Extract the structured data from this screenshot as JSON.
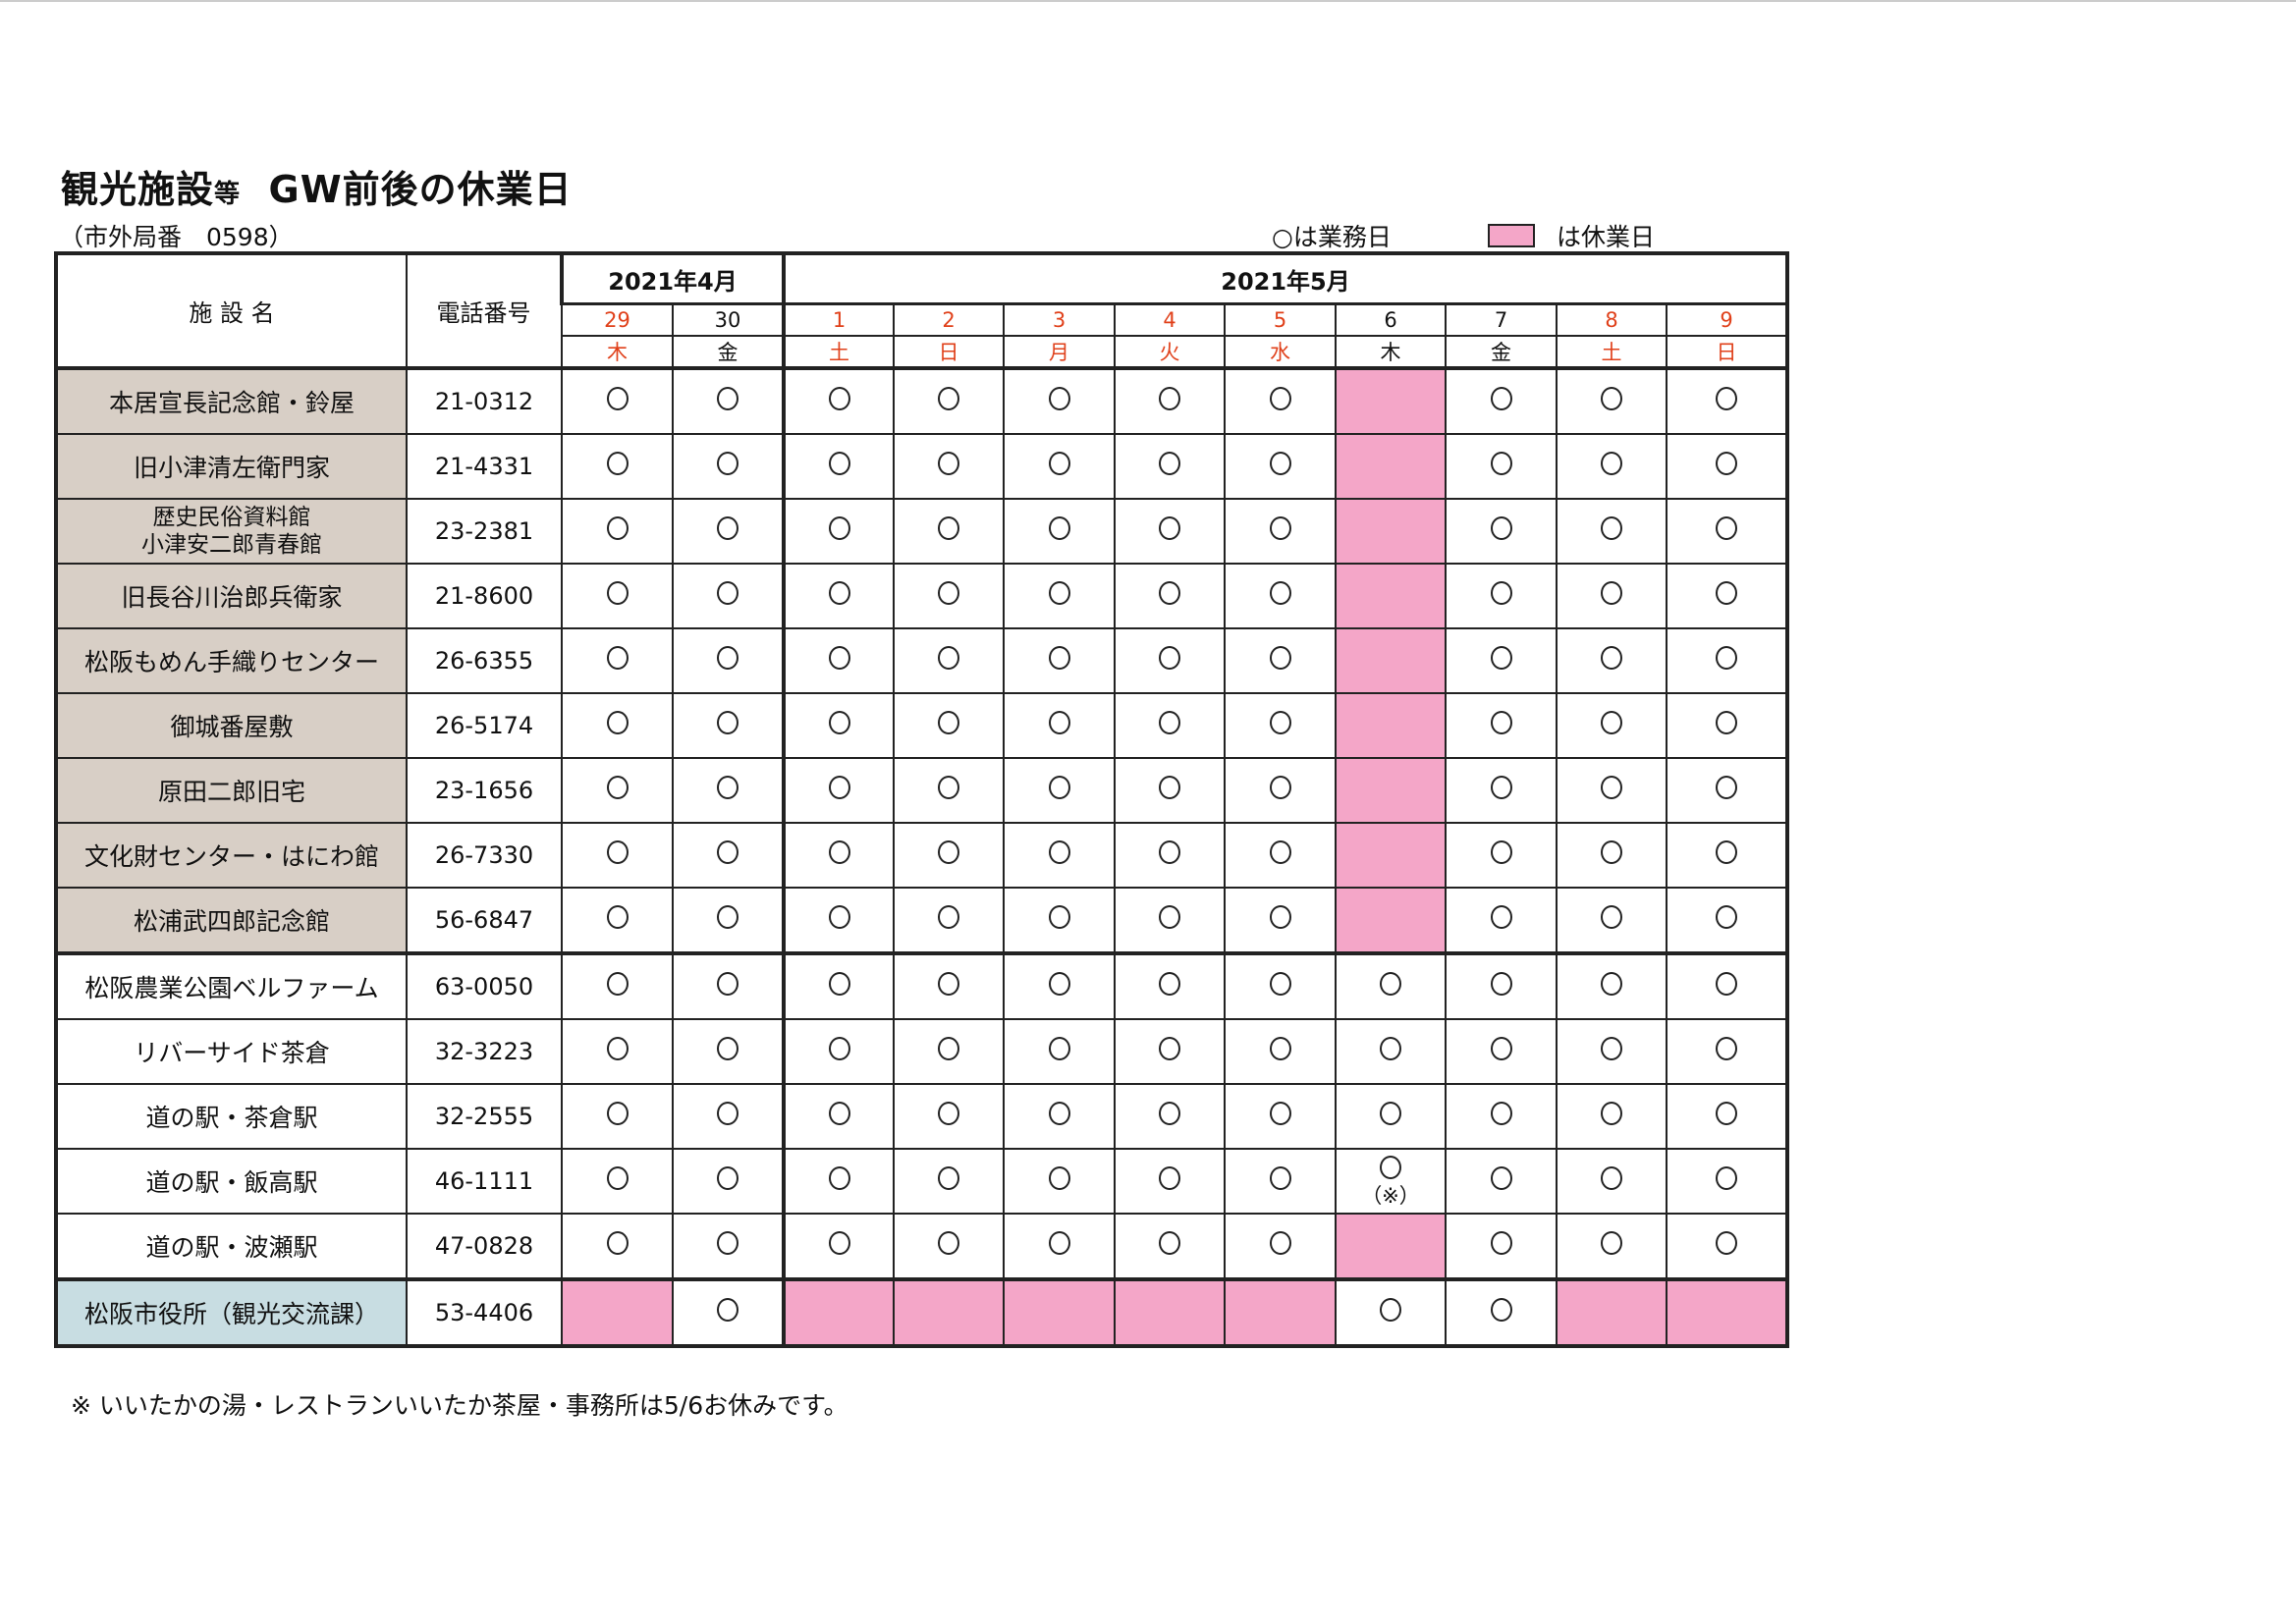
{
  "title": {
    "main": "観光施設",
    "small": "等",
    "rest": "GW前後の休業日"
  },
  "subtitle": "（市外局番　0598）",
  "legend": {
    "open": "○は業務日",
    "closed": "は休業日",
    "open_color": "#ffffff",
    "closed_color": "#f4a6c8"
  },
  "header": {
    "facility": "施 設 名",
    "phone": "電話番号",
    "months": [
      {
        "label": "2021年4月",
        "span": 2
      },
      {
        "label": "2021年5月",
        "span": 9
      }
    ],
    "days": [
      {
        "day": "29",
        "weekday": "木",
        "red": true
      },
      {
        "day": "30",
        "weekday": "金",
        "red": false
      },
      {
        "day": "1",
        "weekday": "土",
        "red": true
      },
      {
        "day": "2",
        "weekday": "日",
        "red": true
      },
      {
        "day": "3",
        "weekday": "月",
        "red": true
      },
      {
        "day": "4",
        "weekday": "火",
        "red": true
      },
      {
        "day": "5",
        "weekday": "水",
        "red": true
      },
      {
        "day": "6",
        "weekday": "木",
        "red": false
      },
      {
        "day": "7",
        "weekday": "金",
        "red": false
      },
      {
        "day": "8",
        "weekday": "土",
        "red": true
      },
      {
        "day": "9",
        "weekday": "日",
        "red": true
      }
    ]
  },
  "open_symbol": "○",
  "note_symbol": "（※）",
  "rows": [
    {
      "name": [
        "本居宣長記念館・鈴屋"
      ],
      "phone": "21-0312",
      "group": "beige",
      "status": [
        "o",
        "o",
        "o",
        "o",
        "o",
        "o",
        "o",
        "x",
        "o",
        "o",
        "o"
      ]
    },
    {
      "name": [
        "旧小津清左衛門家"
      ],
      "phone": "21-4331",
      "group": "beige",
      "status": [
        "o",
        "o",
        "o",
        "o",
        "o",
        "o",
        "o",
        "x",
        "o",
        "o",
        "o"
      ]
    },
    {
      "name": [
        "歴史民俗資料館",
        "小津安二郎青春館"
      ],
      "phone": "23-2381",
      "group": "beige",
      "status": [
        "o",
        "o",
        "o",
        "o",
        "o",
        "o",
        "o",
        "x",
        "o",
        "o",
        "o"
      ]
    },
    {
      "name": [
        "旧長谷川治郎兵衛家"
      ],
      "phone": "21-8600",
      "group": "beige",
      "status": [
        "o",
        "o",
        "o",
        "o",
        "o",
        "o",
        "o",
        "x",
        "o",
        "o",
        "o"
      ]
    },
    {
      "name": [
        "松阪もめん手織りセンター"
      ],
      "phone": "26-6355",
      "group": "beige",
      "status": [
        "o",
        "o",
        "o",
        "o",
        "o",
        "o",
        "o",
        "x",
        "o",
        "o",
        "o"
      ]
    },
    {
      "name": [
        "御城番屋敷"
      ],
      "phone": "26-5174",
      "group": "beige",
      "status": [
        "o",
        "o",
        "o",
        "o",
        "o",
        "o",
        "o",
        "x",
        "o",
        "o",
        "o"
      ]
    },
    {
      "name": [
        "原田二郎旧宅"
      ],
      "phone": "23-1656",
      "group": "beige",
      "status": [
        "o",
        "o",
        "o",
        "o",
        "o",
        "o",
        "o",
        "x",
        "o",
        "o",
        "o"
      ]
    },
    {
      "name": [
        "文化財センター・はにわ館"
      ],
      "phone": "26-7330",
      "group": "beige",
      "status": [
        "o",
        "o",
        "o",
        "o",
        "o",
        "o",
        "o",
        "x",
        "o",
        "o",
        "o"
      ]
    },
    {
      "name": [
        "松浦武四郎記念館"
      ],
      "phone": "56-6847",
      "group": "beige",
      "status": [
        "o",
        "o",
        "o",
        "o",
        "o",
        "o",
        "o",
        "x",
        "o",
        "o",
        "o"
      ]
    },
    {
      "name": [
        "松阪農業公園ベルファーム"
      ],
      "phone": "63-0050",
      "group": "plain",
      "status": [
        "o",
        "o",
        "o",
        "o",
        "o",
        "o",
        "o",
        "o",
        "o",
        "o",
        "o"
      ]
    },
    {
      "name": [
        "リバーサイド茶倉"
      ],
      "phone": "32-3223",
      "group": "plain",
      "status": [
        "o",
        "o",
        "o",
        "o",
        "o",
        "o",
        "o",
        "o",
        "o",
        "o",
        "o"
      ]
    },
    {
      "name": [
        "道の駅・茶倉駅"
      ],
      "phone": "32-2555",
      "group": "plain",
      "status": [
        "o",
        "o",
        "o",
        "o",
        "o",
        "o",
        "o",
        "o",
        "o",
        "o",
        "o"
      ]
    },
    {
      "name": [
        "道の駅・飯高駅"
      ],
      "phone": "46-1111",
      "group": "plain",
      "status": [
        "o",
        "o",
        "o",
        "o",
        "o",
        "o",
        "o",
        "o*",
        "o",
        "o",
        "o"
      ]
    },
    {
      "name": [
        "道の駅・波瀬駅"
      ],
      "phone": "47-0828",
      "group": "plain",
      "status": [
        "o",
        "o",
        "o",
        "o",
        "o",
        "o",
        "o",
        "x",
        "o",
        "o",
        "o"
      ]
    },
    {
      "name": [
        "松阪市役所（観光交流課）"
      ],
      "phone": "53-4406",
      "group": "blue",
      "status": [
        "x",
        "o",
        "x",
        "x",
        "x",
        "x",
        "x",
        "o",
        "o",
        "x",
        "x"
      ]
    }
  ],
  "footnote": "※ いいたかの湯・レストランいいたか茶屋・事務所は5/6お休みです。"
}
